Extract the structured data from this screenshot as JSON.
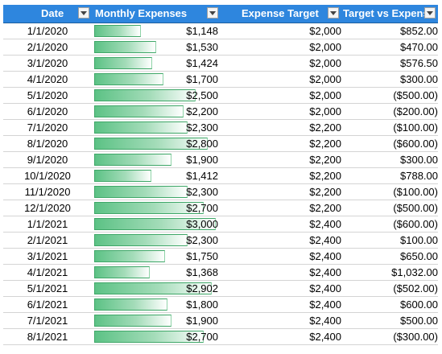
{
  "columns": [
    {
      "key": "date",
      "label": "Date"
    },
    {
      "key": "monthly_expenses",
      "label": "Monthly Expenses"
    },
    {
      "key": "expense_target",
      "label": "Expense Target"
    },
    {
      "key": "target_vs_expense",
      "label": "Target vs Expens"
    }
  ],
  "data_bar": {
    "min": 0,
    "max": 3000,
    "fill_color": "#5cc285",
    "border_color": "#3fa768"
  },
  "negative_color": "#ff0000",
  "header_color": "#2e86de",
  "rows": [
    {
      "date": "1/1/2020",
      "expense": "$1,148",
      "expense_value": 1148,
      "target": "$2,000",
      "diff": "$852.00",
      "negative": false
    },
    {
      "date": "2/1/2020",
      "expense": "$1,530",
      "expense_value": 1530,
      "target": "$2,000",
      "diff": "$470.00",
      "negative": false
    },
    {
      "date": "3/1/2020",
      "expense": "$1,424",
      "expense_value": 1424,
      "target": "$2,000",
      "diff": "$576.50",
      "negative": false
    },
    {
      "date": "4/1/2020",
      "expense": "$1,700",
      "expense_value": 1700,
      "target": "$2,000",
      "diff": "$300.00",
      "negative": false
    },
    {
      "date": "5/1/2020",
      "expense": "$2,500",
      "expense_value": 2500,
      "target": "$2,000",
      "diff": "($500.00)",
      "negative": true
    },
    {
      "date": "6/1/2020",
      "expense": "$2,200",
      "expense_value": 2200,
      "target": "$2,000",
      "diff": "($200.00)",
      "negative": true
    },
    {
      "date": "7/1/2020",
      "expense": "$2,300",
      "expense_value": 2300,
      "target": "$2,200",
      "diff": "($100.00)",
      "negative": true
    },
    {
      "date": "8/1/2020",
      "expense": "$2,800",
      "expense_value": 2800,
      "target": "$2,200",
      "diff": "($600.00)",
      "negative": true
    },
    {
      "date": "9/1/2020",
      "expense": "$1,900",
      "expense_value": 1900,
      "target": "$2,200",
      "diff": "$300.00",
      "negative": false
    },
    {
      "date": "10/1/2020",
      "expense": "$1,412",
      "expense_value": 1412,
      "target": "$2,200",
      "diff": "$788.00",
      "negative": false
    },
    {
      "date": "11/1/2020",
      "expense": "$2,300",
      "expense_value": 2300,
      "target": "$2,200",
      "diff": "($100.00)",
      "negative": true
    },
    {
      "date": "12/1/2020",
      "expense": "$2,700",
      "expense_value": 2700,
      "target": "$2,200",
      "diff": "($500.00)",
      "negative": true
    },
    {
      "date": "1/1/2021",
      "expense": "$3,000",
      "expense_value": 3000,
      "target": "$2,400",
      "diff": "($600.00)",
      "negative": true
    },
    {
      "date": "2/1/2021",
      "expense": "$2,300",
      "expense_value": 2300,
      "target": "$2,400",
      "diff": "$100.00",
      "negative": false
    },
    {
      "date": "3/1/2021",
      "expense": "$1,750",
      "expense_value": 1750,
      "target": "$2,400",
      "diff": "$650.00",
      "negative": false
    },
    {
      "date": "4/1/2021",
      "expense": "$1,368",
      "expense_value": 1368,
      "target": "$2,400",
      "diff": "$1,032.00",
      "negative": false
    },
    {
      "date": "5/1/2021",
      "expense": "$2,902",
      "expense_value": 2902,
      "target": "$2,400",
      "diff": "($502.00)",
      "negative": true
    },
    {
      "date": "6/1/2021",
      "expense": "$1,800",
      "expense_value": 1800,
      "target": "$2,400",
      "diff": "$600.00",
      "negative": false
    },
    {
      "date": "7/1/2021",
      "expense": "$1,900",
      "expense_value": 1900,
      "target": "$2,400",
      "diff": "$500.00",
      "negative": false
    },
    {
      "date": "8/1/2021",
      "expense": "$2,700",
      "expense_value": 2700,
      "target": "$2,400",
      "diff": "($300.00)",
      "negative": true
    }
  ]
}
